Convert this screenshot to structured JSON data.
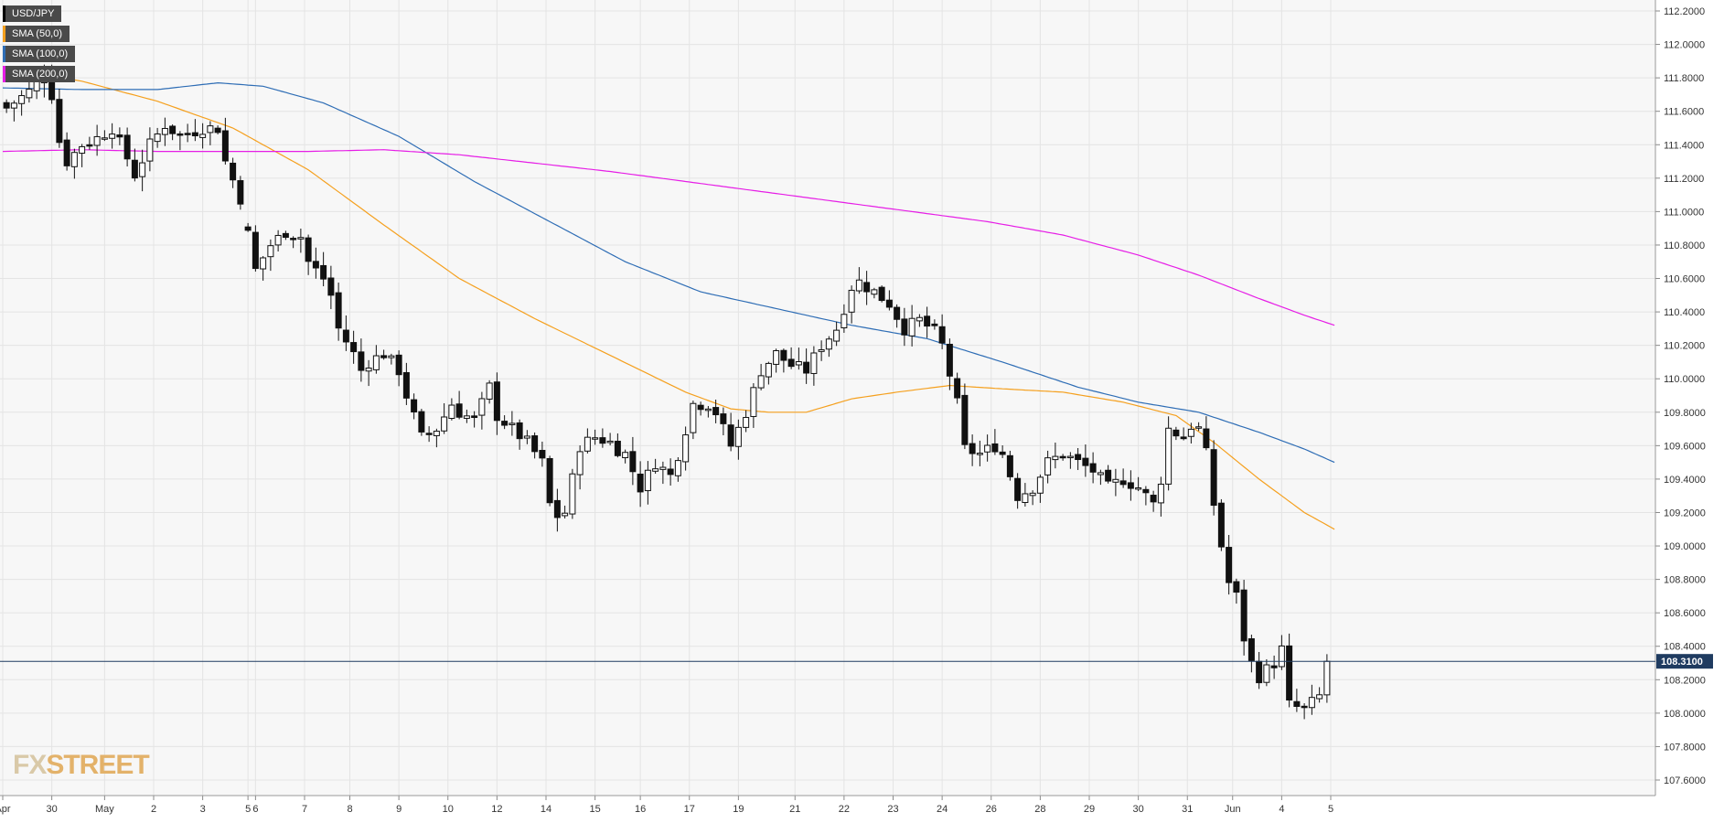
{
  "chart_data": {
    "type": "candlestick",
    "symbol": "USD/JPY",
    "legend": [
      {
        "label": "USD/JPY",
        "color": "#000000"
      },
      {
        "label": "SMA (50,0)",
        "color": "#f5a01e"
      },
      {
        "label": "SMA (100,0)",
        "color": "#2e6db5"
      },
      {
        "label": "SMA (200,0)",
        "color": "#e61ee6"
      }
    ],
    "ylim": [
      107.55,
      112.25
    ],
    "y_ticks": [
      "107.6000",
      "107.8000",
      "108.0000",
      "108.2000",
      "108.4000",
      "108.6000",
      "108.8000",
      "109.0000",
      "109.2000",
      "109.4000",
      "109.6000",
      "109.8000",
      "110.0000",
      "110.2000",
      "110.4000",
      "110.6000",
      "110.8000",
      "111.0000",
      "111.2000",
      "111.4000",
      "111.6000",
      "111.8000",
      "112.0000",
      "112.2000"
    ],
    "x_labels": [
      {
        "label": "Apr",
        "i": -0.5
      },
      {
        "label": "30",
        "i": 6
      },
      {
        "label": "May",
        "i": 13
      },
      {
        "label": "2",
        "i": 19.5
      },
      {
        "label": "3",
        "i": 26
      },
      {
        "label": "5",
        "i": 32
      },
      {
        "label": "6",
        "i": 33
      },
      {
        "label": "7",
        "i": 39.5
      },
      {
        "label": "8",
        "i": 45.5
      },
      {
        "label": "9",
        "i": 52
      },
      {
        "label": "10",
        "i": 58.5
      },
      {
        "label": "12",
        "i": 65
      },
      {
        "label": "14",
        "i": 71.5
      },
      {
        "label": "15",
        "i": 78
      },
      {
        "label": "16",
        "i": 84
      },
      {
        "label": "17",
        "i": 90.5
      },
      {
        "label": "19",
        "i": 97
      },
      {
        "label": "21",
        "i": 104.5
      },
      {
        "label": "22",
        "i": 111
      },
      {
        "label": "23",
        "i": 117.5
      },
      {
        "label": "24",
        "i": 124
      },
      {
        "label": "26",
        "i": 130.5
      },
      {
        "label": "28",
        "i": 137
      },
      {
        "label": "29",
        "i": 143.5
      },
      {
        "label": "30",
        "i": 150
      },
      {
        "label": "31",
        "i": 156.5
      },
      {
        "label": "Jun",
        "i": 162.5
      },
      {
        "label": "4",
        "i": 169
      },
      {
        "label": "5",
        "i": 175.5
      }
    ],
    "ohlc_anchors": [
      [
        0,
        111.62
      ],
      [
        3,
        111.72
      ],
      [
        5,
        111.82
      ],
      [
        6,
        111.7
      ],
      [
        7,
        111.42
      ],
      [
        8,
        111.3
      ],
      [
        10,
        111.4
      ],
      [
        12,
        111.44
      ],
      [
        14,
        111.5
      ],
      [
        16,
        111.32
      ],
      [
        17,
        111.22
      ],
      [
        19,
        111.4
      ],
      [
        21,
        111.52
      ],
      [
        23,
        111.45
      ],
      [
        26,
        111.5
      ],
      [
        28,
        111.5
      ],
      [
        29,
        111.3
      ],
      [
        31,
        111.08
      ],
      [
        33,
        110.65
      ],
      [
        35,
        110.8
      ],
      [
        37,
        110.88
      ],
      [
        39,
        110.85
      ],
      [
        40,
        110.7
      ],
      [
        42,
        110.6
      ],
      [
        43,
        110.5
      ],
      [
        44,
        110.3
      ],
      [
        46,
        110.15
      ],
      [
        47,
        110.05
      ],
      [
        48,
        110.1
      ],
      [
        50,
        110.15
      ],
      [
        52,
        110.05
      ],
      [
        53,
        109.9
      ],
      [
        55,
        109.65
      ],
      [
        57,
        109.7
      ],
      [
        59,
        109.85
      ],
      [
        60,
        109.8
      ],
      [
        62,
        109.75
      ],
      [
        64,
        109.95
      ],
      [
        65,
        109.78
      ],
      [
        67,
        109.7
      ],
      [
        69,
        109.62
      ],
      [
        71,
        109.5
      ],
      [
        72,
        109.25
      ],
      [
        73,
        109.18
      ],
      [
        74,
        109.2
      ],
      [
        76,
        109.6
      ],
      [
        78,
        109.65
      ],
      [
        80,
        109.62
      ],
      [
        81,
        109.58
      ],
      [
        82,
        109.55
      ],
      [
        84,
        109.35
      ],
      [
        86,
        109.5
      ],
      [
        88,
        109.42
      ],
      [
        89,
        109.55
      ],
      [
        91,
        109.85
      ],
      [
        93,
        109.85
      ],
      [
        94,
        109.8
      ],
      [
        96,
        109.6
      ],
      [
        98,
        109.8
      ],
      [
        100,
        110.05
      ],
      [
        102,
        110.15
      ],
      [
        104,
        110.08
      ],
      [
        106,
        110.05
      ],
      [
        108,
        110.2
      ],
      [
        110,
        110.3
      ],
      [
        112,
        110.55
      ],
      [
        113,
        110.58
      ],
      [
        115,
        110.52
      ],
      [
        117,
        110.45
      ],
      [
        119,
        110.3
      ],
      [
        121,
        110.35
      ],
      [
        123,
        110.28
      ],
      [
        124,
        110.2
      ],
      [
        126,
        109.85
      ],
      [
        127,
        109.58
      ],
      [
        129,
        109.55
      ],
      [
        131,
        109.6
      ],
      [
        132,
        109.55
      ],
      [
        134,
        109.3
      ],
      [
        136,
        109.35
      ],
      [
        138,
        109.5
      ],
      [
        140,
        109.55
      ],
      [
        142,
        109.5
      ],
      [
        144,
        109.45
      ],
      [
        146,
        109.35
      ],
      [
        148,
        109.4
      ],
      [
        150,
        109.35
      ],
      [
        152,
        109.25
      ],
      [
        153,
        109.4
      ],
      [
        154,
        109.7
      ],
      [
        156,
        109.65
      ],
      [
        157,
        109.72
      ],
      [
        158,
        109.7
      ],
      [
        159,
        109.55
      ],
      [
        160,
        109.25
      ],
      [
        161,
        109.0
      ],
      [
        162,
        108.78
      ],
      [
        163,
        108.7
      ],
      [
        164,
        108.45
      ],
      [
        165,
        108.3
      ],
      [
        166,
        108.22
      ],
      [
        168,
        108.3
      ],
      [
        169,
        108.38
      ],
      [
        170,
        108.05
      ],
      [
        172,
        108.02
      ],
      [
        174,
        108.1
      ],
      [
        175,
        108.31
      ]
    ],
    "sma_50": [
      [
        -0.5,
        111.86
      ],
      [
        10,
        111.78
      ],
      [
        20,
        111.66
      ],
      [
        30,
        111.5
      ],
      [
        40,
        111.25
      ],
      [
        50,
        110.92
      ],
      [
        60,
        110.6
      ],
      [
        70,
        110.36
      ],
      [
        80,
        110.14
      ],
      [
        90,
        109.92
      ],
      [
        96,
        109.82
      ],
      [
        101,
        109.8
      ],
      [
        106,
        109.8
      ],
      [
        112,
        109.88
      ],
      [
        118,
        109.92
      ],
      [
        125,
        109.96
      ],
      [
        132,
        109.94
      ],
      [
        140,
        109.92
      ],
      [
        148,
        109.86
      ],
      [
        155,
        109.78
      ],
      [
        160,
        109.62
      ],
      [
        166,
        109.4
      ],
      [
        172,
        109.2
      ],
      [
        176,
        109.1
      ]
    ],
    "sma_100": [
      [
        -0.5,
        111.74
      ],
      [
        10,
        111.73
      ],
      [
        20,
        111.73
      ],
      [
        28,
        111.77
      ],
      [
        34,
        111.75
      ],
      [
        42,
        111.65
      ],
      [
        52,
        111.45
      ],
      [
        62,
        111.18
      ],
      [
        72,
        110.94
      ],
      [
        82,
        110.7
      ],
      [
        92,
        110.52
      ],
      [
        102,
        110.42
      ],
      [
        112,
        110.32
      ],
      [
        122,
        110.24
      ],
      [
        132,
        110.1
      ],
      [
        142,
        109.95
      ],
      [
        150,
        109.86
      ],
      [
        158,
        109.8
      ],
      [
        166,
        109.68
      ],
      [
        172,
        109.58
      ],
      [
        176,
        109.5
      ]
    ],
    "sma_200": [
      [
        -0.5,
        111.36
      ],
      [
        10,
        111.37
      ],
      [
        20,
        111.36
      ],
      [
        30,
        111.36
      ],
      [
        40,
        111.36
      ],
      [
        50,
        111.37
      ],
      [
        60,
        111.34
      ],
      [
        70,
        111.29
      ],
      [
        80,
        111.24
      ],
      [
        90,
        111.18
      ],
      [
        100,
        111.12
      ],
      [
        110,
        111.06
      ],
      [
        120,
        111.0
      ],
      [
        130,
        110.94
      ],
      [
        140,
        110.86
      ],
      [
        150,
        110.74
      ],
      [
        158,
        110.62
      ],
      [
        166,
        110.48
      ],
      [
        172,
        110.38
      ],
      [
        176,
        110.32
      ]
    ],
    "last_price": "108.3100",
    "last_value": 108.31,
    "watermark": {
      "part1": "FX",
      "part2": "STREET"
    }
  }
}
